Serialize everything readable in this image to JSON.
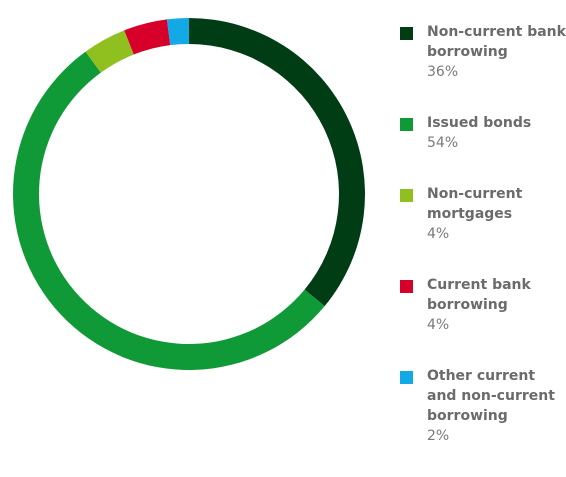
{
  "chart_data": {
    "type": "donut",
    "categories": [
      "Non-current bank borrowing",
      "Issued bonds",
      "Non-current mortgages",
      "Current bank borrowing",
      "Other current and non-current borrowing"
    ],
    "values": [
      36,
      54,
      4,
      4,
      2
    ],
    "value_labels": [
      "36%",
      "54%",
      "4%",
      "4%",
      "2%"
    ],
    "colors": [
      "#003d14",
      "#109a37",
      "#8fc01f",
      "#d6002a",
      "#12a9e6"
    ],
    "legend": "right"
  }
}
